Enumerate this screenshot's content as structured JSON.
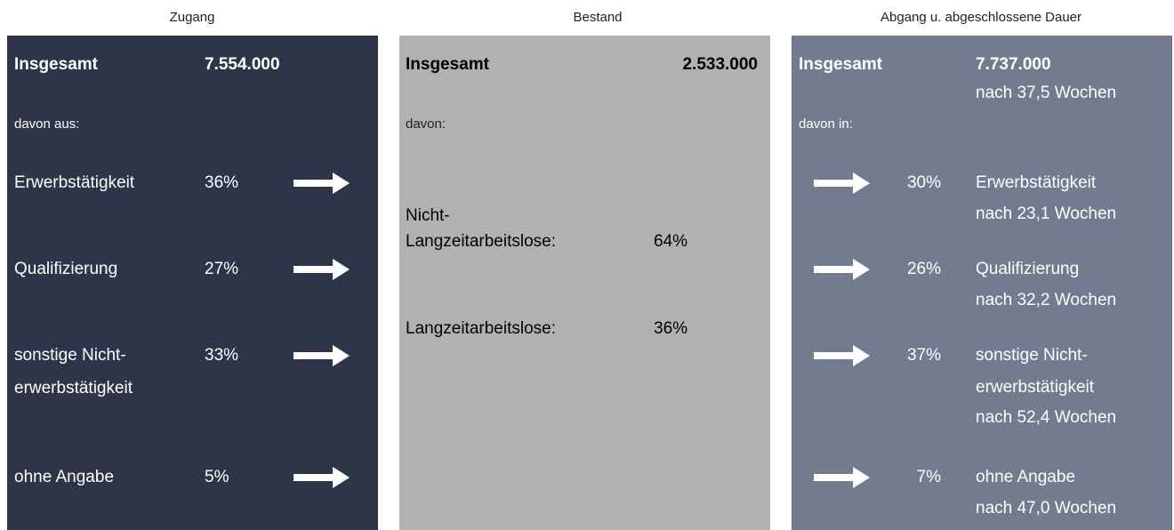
{
  "columns": [
    {
      "header": "Zugang",
      "total_label": "Insgesamt",
      "total": "7.554.000",
      "sub": "davon aus:",
      "rows": [
        {
          "label": [
            "Erwerbstätigkeit"
          ],
          "share": "36%"
        },
        {
          "label": [
            "Qualifizierung"
          ],
          "share": "27%"
        },
        {
          "label": [
            "sonstige Nicht-",
            "erwerbstätigkeit"
          ],
          "share": "33%"
        },
        {
          "label": [
            "ohne Angabe"
          ],
          "share": "5%"
        }
      ]
    },
    {
      "header": "Bestand",
      "total_label": "Insgesamt",
      "total": "2.533.000",
      "sub": "davon:",
      "rows": [
        {
          "label": [
            "Nicht-",
            "Langzeitarbeitslose:"
          ],
          "share": "64%"
        },
        {
          "label": [
            "Langzeitarbeitslose:"
          ],
          "share": "36%"
        }
      ]
    },
    {
      "header": "Abgang u. abgeschlossene Dauer",
      "total_label": "Insgesamt",
      "total": "7.737.000",
      "total_duration": "nach 37,5 Wochen",
      "sub": "davon in:",
      "rows": [
        {
          "label": [
            "Erwerbstätigkeit"
          ],
          "share": "30%",
          "duration": "nach 23,1 Wochen"
        },
        {
          "label": [
            "Qualifizierung"
          ],
          "share": "26%",
          "duration": "nach 32,2 Wochen"
        },
        {
          "label": [
            "sonstige Nicht-",
            "erwerbstätigkeit"
          ],
          "share": "37%",
          "duration": "nach 52,4 Wochen"
        },
        {
          "label": [
            "ohne Angabe"
          ],
          "share": "7%",
          "duration": "nach 47,0 Wochen"
        }
      ]
    }
  ]
}
